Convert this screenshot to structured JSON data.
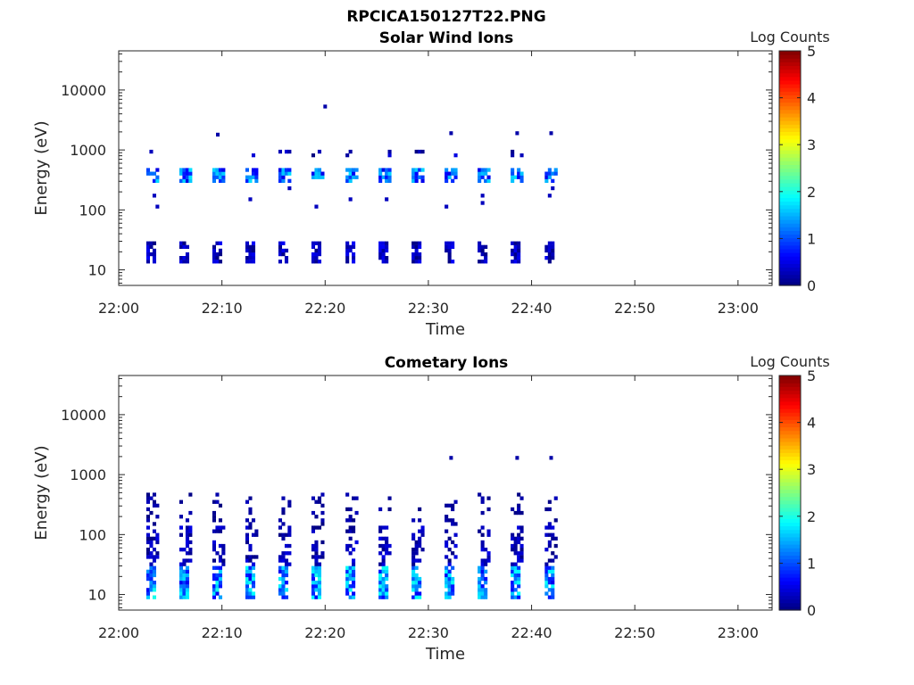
{
  "figure": {
    "title": "RPCICA150127T22.PNG"
  },
  "chart_data": [
    {
      "type": "heatmap",
      "title": "Solar Wind Ions",
      "xlabel": "Time",
      "ylabel": "Energy (eV)",
      "x_ticks": [
        "22:00",
        "22:10",
        "22:20",
        "22:30",
        "22:40",
        "22:50",
        "23:00"
      ],
      "xlim_minutes": [
        0,
        63.3
      ],
      "y_scale": "log",
      "y_ticks": [
        "10",
        "100",
        "1000",
        "10000"
      ],
      "ylim": [
        5.5,
        45000
      ],
      "colorbar": {
        "label": "Log Counts",
        "ticks": [
          "0",
          "1",
          "2",
          "3",
          "4",
          "5"
        ],
        "range": [
          0,
          5
        ],
        "colormap": "jet"
      },
      "scans_minutes": [
        3.3,
        6.5,
        9.7,
        12.9,
        16.1,
        19.3,
        22.6,
        25.8,
        29.0,
        32.2,
        35.4,
        38.6,
        41.9
      ],
      "features": {
        "low_band_eV": [
          12,
          30,
          0.6
        ],
        "main_band_eV": [
          280,
          520,
          1.6
        ],
        "upper_band_eV": [
          800,
          1050,
          0.5
        ],
        "top_points_eV": [
          [
            9.6,
            1800
          ],
          [
            32.2,
            1900
          ],
          [
            38.6,
            1900
          ],
          [
            41.9,
            1900
          ],
          [
            20.0,
            5300
          ]
        ]
      }
    },
    {
      "type": "heatmap",
      "title": "Cometary Ions",
      "xlabel": "Time",
      "ylabel": "Energy (eV)",
      "x_ticks": [
        "22:00",
        "22:10",
        "22:20",
        "22:30",
        "22:40",
        "22:50",
        "23:00"
      ],
      "xlim_minutes": [
        0,
        63.3
      ],
      "y_scale": "log",
      "y_ticks": [
        "10",
        "100",
        "1000",
        "10000"
      ],
      "ylim": [
        5.5,
        45000
      ],
      "colorbar": {
        "label": "Log Counts",
        "ticks": [
          "0",
          "1",
          "2",
          "3",
          "4",
          "5"
        ],
        "range": [
          0,
          5
        ],
        "colormap": "jet"
      },
      "scans_minutes": [
        3.3,
        6.5,
        9.7,
        12.9,
        16.1,
        19.3,
        22.6,
        25.8,
        29.0,
        32.2,
        35.4,
        38.6,
        41.9
      ],
      "features": {
        "core_band_eV": [
          8,
          30,
          1.8
        ],
        "mid_band_eV": [
          30,
          150,
          0.5
        ],
        "upper_band_eV": [
          150,
          500,
          0.3
        ],
        "top_points_eV": [
          [
            32.2,
            1900
          ],
          [
            38.6,
            1900
          ],
          [
            41.9,
            1900
          ]
        ]
      }
    }
  ]
}
